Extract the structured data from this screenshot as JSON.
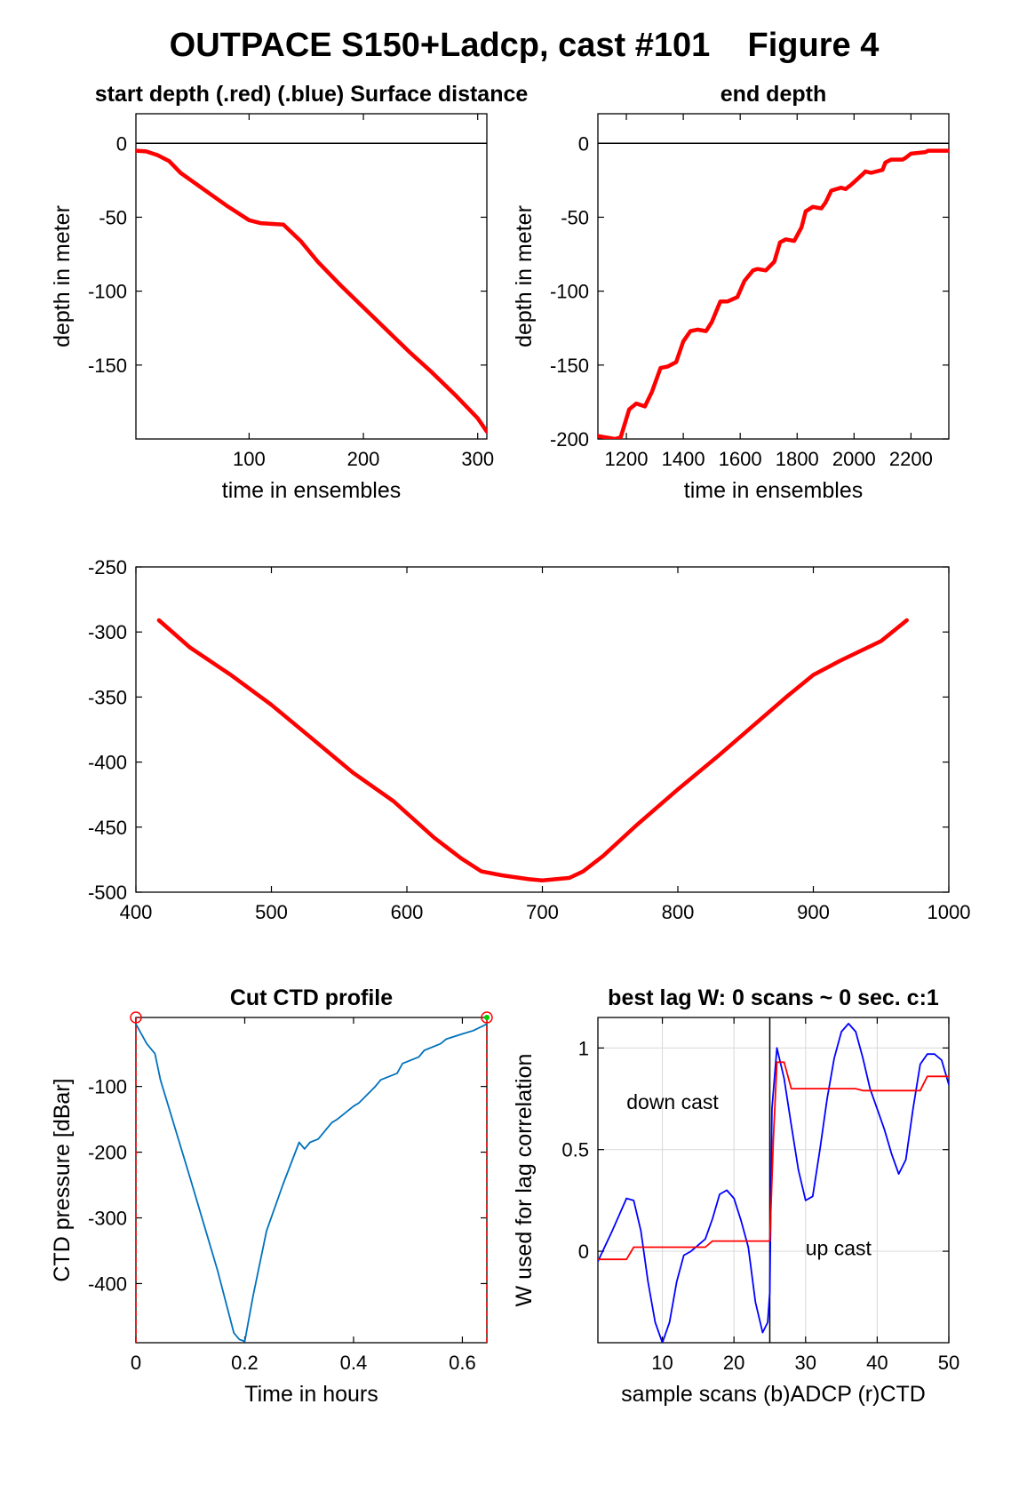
{
  "figure": {
    "title": "OUTPACE S150+Ladcp, cast #101    Figure 4"
  },
  "chart_data": [
    {
      "id": "start",
      "type": "line",
      "title": "start depth (.red) (.blue) Surface distance",
      "xlabel": "time in ensembles",
      "ylabel": "depth in meter",
      "xlim": [
        1,
        308
      ],
      "ylim": [
        -200,
        20
      ],
      "xticks": [
        100,
        200,
        300
      ],
      "yticks": [
        0,
        -50,
        -100,
        -150
      ],
      "reference_line_y": 0,
      "series": [
        {
          "color": "#ff0000",
          "x": [
            1,
            10,
            20,
            30,
            40,
            60,
            80,
            100,
            110,
            130,
            145,
            160,
            180,
            200,
            220,
            240,
            260,
            280,
            300,
            308
          ],
          "y": [
            -5,
            -5.5,
            -8,
            -12,
            -20,
            -31,
            -42,
            -52,
            -54,
            -55,
            -66,
            -80,
            -96,
            -111,
            -126,
            -141,
            -155,
            -170,
            -186,
            -195
          ]
        }
      ]
    },
    {
      "id": "end",
      "type": "line",
      "title": "end depth",
      "xlabel": "time in ensembles",
      "ylabel": "depth in meter",
      "xlim": [
        1100,
        2333
      ],
      "ylim": [
        -200,
        20
      ],
      "xticks": [
        1200,
        1400,
        1600,
        1800,
        2000,
        2200
      ],
      "yticks": [
        0,
        -50,
        -100,
        -150,
        -200
      ],
      "reference_line_y": 0,
      "series": [
        {
          "color": "#ff0000",
          "x": [
            1100,
            1130,
            1160,
            1180,
            1210,
            1235,
            1265,
            1290,
            1320,
            1345,
            1375,
            1400,
            1425,
            1450,
            1480,
            1500,
            1530,
            1555,
            1590,
            1615,
            1645,
            1660,
            1690,
            1720,
            1740,
            1760,
            1790,
            1815,
            1830,
            1855,
            1885,
            1900,
            1920,
            1955,
            1970,
            1990,
            2030,
            2040,
            2060,
            2100,
            2110,
            2130,
            2170,
            2180,
            2200,
            2250,
            2260,
            2280,
            2300,
            2333
          ],
          "y": [
            -198,
            -199,
            -200,
            -199,
            -180,
            -176,
            -178,
            -168,
            -152,
            -151,
            -148,
            -134,
            -127,
            -126,
            -127,
            -121,
            -107,
            -107,
            -104,
            -93,
            -86,
            -85,
            -86,
            -80,
            -67,
            -65,
            -66,
            -57,
            -46,
            -43,
            -44,
            -40,
            -32,
            -30,
            -31,
            -28,
            -21,
            -19,
            -20,
            -18,
            -13,
            -11,
            -11,
            -10,
            -7,
            -6,
            -5,
            -5,
            -5,
            -5
          ]
        }
      ]
    },
    {
      "id": "middle",
      "type": "line",
      "title": "",
      "xlabel": "",
      "ylabel": "",
      "xlim": [
        400,
        1000
      ],
      "ylim": [
        -500,
        -250
      ],
      "xticks": [
        400,
        500,
        600,
        700,
        800,
        900,
        1000
      ],
      "yticks": [
        -250,
        -300,
        -350,
        -400,
        -450,
        -500
      ],
      "series": [
        {
          "color": "#ff0000",
          "x": [
            417,
            440,
            470,
            500,
            530,
            560,
            590,
            620,
            640,
            655,
            670,
            690,
            700,
            720,
            730,
            745,
            770,
            800,
            830,
            860,
            880,
            900,
            920,
            950,
            969
          ],
          "y": [
            -291,
            -312,
            -333,
            -356,
            -382,
            -408,
            -430,
            -458,
            -474,
            -484,
            -487,
            -490,
            -491,
            -489,
            -484,
            -472,
            -448,
            -421,
            -395,
            -368,
            -350,
            -333,
            -322,
            -307,
            -291
          ]
        }
      ]
    },
    {
      "id": "ctd",
      "type": "line",
      "title": "Cut CTD profile",
      "xlabel": "Time in hours",
      "ylabel": "CTD pressure [dBar]",
      "xlim": [
        0,
        0.645
      ],
      "ylim": [
        -490,
        5
      ],
      "xticks": [
        0,
        0.2,
        0.4,
        0.6
      ],
      "yticks": [
        -100,
        -200,
        -300,
        -400
      ],
      "cut_markers_x": [
        0,
        0.645
      ],
      "series": [
        {
          "color": "#0072bd",
          "x": [
            0,
            0.02,
            0.035,
            0.045,
            0.1,
            0.15,
            0.18,
            0.19,
            0.2,
            0.215,
            0.24,
            0.27,
            0.3,
            0.31,
            0.32,
            0.335,
            0.36,
            0.37,
            0.4,
            0.41,
            0.44,
            0.45,
            0.48,
            0.49,
            0.52,
            0.53,
            0.56,
            0.57,
            0.6,
            0.62,
            0.645
          ],
          "y": [
            -5,
            -35,
            -50,
            -90,
            -240,
            -380,
            -475,
            -485,
            -488,
            -420,
            -320,
            -250,
            -185,
            -195,
            -185,
            -180,
            -155,
            -150,
            -130,
            -125,
            -100,
            -90,
            -80,
            -65,
            -55,
            -45,
            -35,
            -28,
            -20,
            -15,
            -5
          ]
        }
      ]
    },
    {
      "id": "lag",
      "type": "line",
      "title": "best lag W: 0 scans ~ 0 sec.  c:1",
      "xlabel": "sample scans (b)ADCP (r)CTD",
      "ylabel": "W used for lag correlation",
      "xlim": [
        1,
        50
      ],
      "ylim": [
        -0.45,
        1.15
      ],
      "xticks": [
        10,
        20,
        30,
        40,
        50
      ],
      "yticks": [
        0,
        0.5,
        1
      ],
      "grid": true,
      "vertical_line_x": 25,
      "annotations": [
        {
          "text": "down cast",
          "x": 5,
          "y": 0.7
        },
        {
          "text": "up cast",
          "x": 30,
          "y": -0.02
        }
      ],
      "series": [
        {
          "name": "ADCP",
          "color": "#0000ff",
          "x": [
            1,
            3,
            5,
            6,
            7,
            8,
            9,
            10,
            11,
            12,
            13,
            14,
            15,
            16,
            17,
            18,
            19,
            20,
            21,
            22,
            23,
            24,
            24.7,
            25,
            25.3,
            26,
            27,
            28,
            29,
            30,
            31,
            32,
            33,
            34,
            35,
            36,
            37,
            38,
            39,
            40,
            41,
            42,
            43,
            44,
            45,
            46,
            47,
            48,
            49,
            50
          ],
          "y": [
            -0.05,
            0.1,
            0.26,
            0.25,
            0.1,
            -0.15,
            -0.35,
            -0.45,
            -0.35,
            -0.15,
            -0.02,
            0.0,
            0.03,
            0.06,
            0.16,
            0.28,
            0.3,
            0.26,
            0.15,
            0.02,
            -0.25,
            -0.4,
            -0.35,
            -0.2,
            0.7,
            1.0,
            0.85,
            0.62,
            0.4,
            0.25,
            0.27,
            0.5,
            0.75,
            0.95,
            1.08,
            1.12,
            1.08,
            0.95,
            0.8,
            0.7,
            0.6,
            0.48,
            0.38,
            0.45,
            0.7,
            0.92,
            0.97,
            0.97,
            0.94,
            0.82
          ]
        },
        {
          "name": "CTD",
          "color": "#ff0000",
          "x": [
            1,
            5,
            6,
            16,
            17,
            25,
            25.5,
            26,
            27,
            28,
            29,
            37,
            38,
            46,
            47,
            48,
            50
          ],
          "y": [
            -0.04,
            -0.04,
            0.02,
            0.02,
            0.05,
            0.05,
            0.55,
            0.93,
            0.93,
            0.8,
            0.8,
            0.8,
            0.79,
            0.79,
            0.86,
            0.86,
            0.86
          ]
        }
      ]
    }
  ]
}
